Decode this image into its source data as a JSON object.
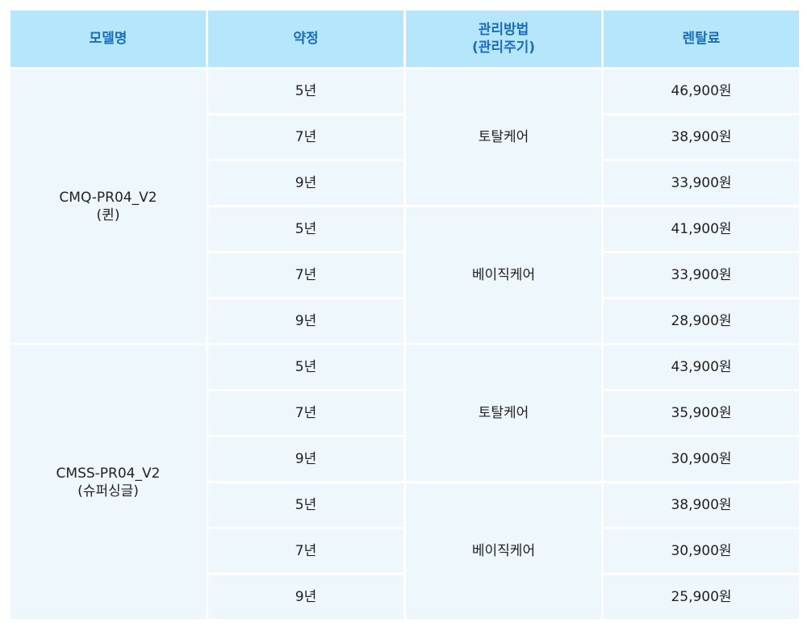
{
  "header": {
    "model": "모델명",
    "contract": "약정",
    "management_line1": "관리방법",
    "management_line2": "(관리주기)",
    "fee": "렌탈료"
  },
  "groups": [
    {
      "model_line1": "CMQ-PR04_V2",
      "model_line2": "(퀸)",
      "plans": [
        {
          "name": "토탈케어",
          "rows": [
            {
              "term": "5년",
              "fee": "46,900원"
            },
            {
              "term": "7년",
              "fee": "38,900원"
            },
            {
              "term": "9년",
              "fee": "33,900원"
            }
          ]
        },
        {
          "name": "베이직케어",
          "rows": [
            {
              "term": "5년",
              "fee": "41,900원"
            },
            {
              "term": "7년",
              "fee": "33,900원"
            },
            {
              "term": "9년",
              "fee": "28,900원"
            }
          ]
        }
      ]
    },
    {
      "model_line1": "CMSS-PR04_V2",
      "model_line2": "(슈퍼싱글)",
      "plans": [
        {
          "name": "토탈케어",
          "rows": [
            {
              "term": "5년",
              "fee": "43,900원"
            },
            {
              "term": "7년",
              "fee": "35,900원"
            },
            {
              "term": "9년",
              "fee": "30,900원"
            }
          ]
        },
        {
          "name": "베이직케어",
          "rows": [
            {
              "term": "5년",
              "fee": "38,900원"
            },
            {
              "term": "7년",
              "fee": "30,900원"
            },
            {
              "term": "9년",
              "fee": "25,900원"
            }
          ]
        }
      ]
    }
  ]
}
